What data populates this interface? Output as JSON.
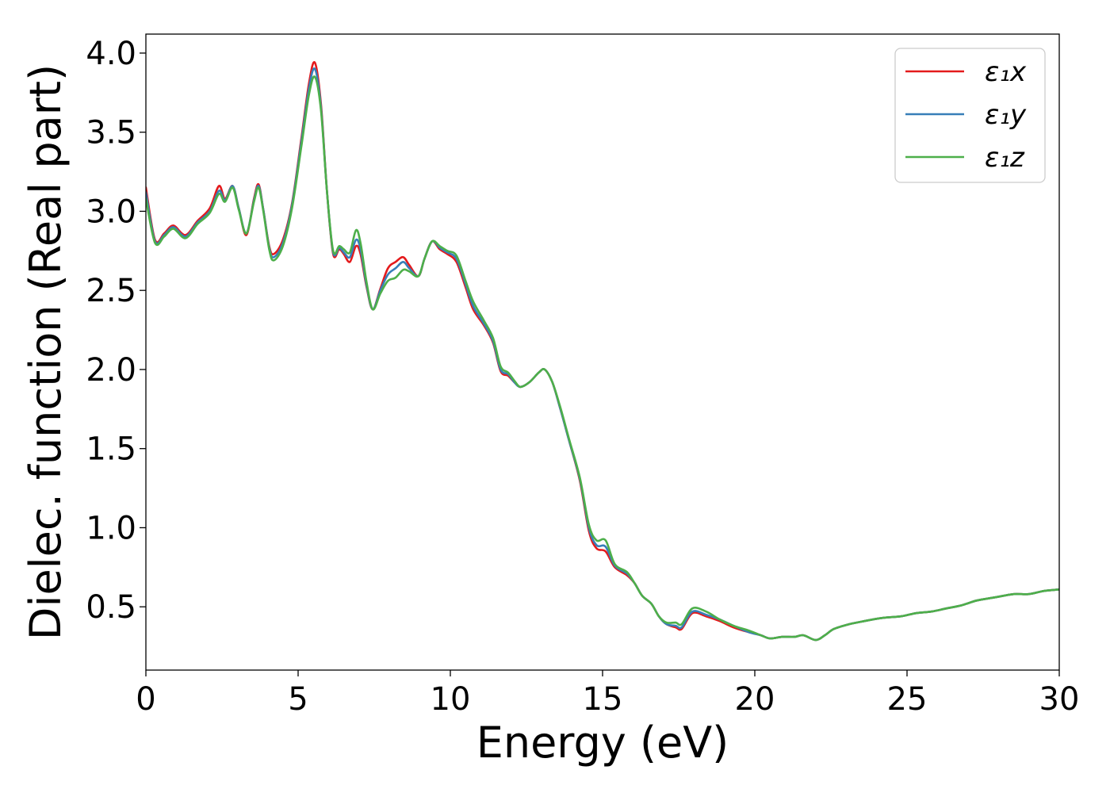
{
  "chart_data": {
    "type": "line",
    "xlabel": "Energy (eV)",
    "ylabel": "Dielec. function (Real part)",
    "xlim": [
      0,
      30
    ],
    "ylim": [
      0.1,
      4.12
    ],
    "xticks": [
      0,
      5,
      10,
      15,
      20,
      25,
      30
    ],
    "yticks": [
      0.5,
      1.0,
      1.5,
      2.0,
      2.5,
      3.0,
      3.5,
      4.0
    ],
    "xtick_labels": [
      "0",
      "5",
      "10",
      "15",
      "20",
      "25",
      "30"
    ],
    "ytick_labels": [
      "0.5",
      "1.0",
      "1.5",
      "2.0",
      "2.5",
      "3.0",
      "3.5",
      "4.0"
    ],
    "grid": false,
    "legend_position": "top-right",
    "series": [
      {
        "name": "ε₁x",
        "color": "#e41a1c",
        "points": [
          [
            0,
            3.15
          ],
          [
            0.3,
            2.82
          ],
          [
            0.6,
            2.86
          ],
          [
            0.9,
            2.91
          ],
          [
            1.3,
            2.85
          ],
          [
            1.7,
            2.94
          ],
          [
            2.1,
            3.02
          ],
          [
            2.4,
            3.16
          ],
          [
            2.6,
            3.08
          ],
          [
            2.85,
            3.16
          ],
          [
            3.05,
            3.02
          ],
          [
            3.3,
            2.85
          ],
          [
            3.55,
            3.08
          ],
          [
            3.7,
            3.17
          ],
          [
            3.85,
            3.02
          ],
          [
            4.05,
            2.78
          ],
          [
            4.2,
            2.73
          ],
          [
            4.5,
            2.82
          ],
          [
            4.8,
            3.05
          ],
          [
            5.1,
            3.45
          ],
          [
            5.35,
            3.8
          ],
          [
            5.55,
            3.94
          ],
          [
            5.75,
            3.68
          ],
          [
            5.95,
            3.12
          ],
          [
            6.15,
            2.73
          ],
          [
            6.35,
            2.76
          ],
          [
            6.5,
            2.73
          ],
          [
            6.7,
            2.68
          ],
          [
            6.9,
            2.78
          ],
          [
            7.05,
            2.73
          ],
          [
            7.25,
            2.52
          ],
          [
            7.45,
            2.38
          ],
          [
            7.7,
            2.51
          ],
          [
            7.95,
            2.64
          ],
          [
            8.2,
            2.68
          ],
          [
            8.45,
            2.71
          ],
          [
            8.65,
            2.66
          ],
          [
            8.95,
            2.59
          ],
          [
            9.15,
            2.7
          ],
          [
            9.4,
            2.81
          ],
          [
            9.65,
            2.76
          ],
          [
            9.9,
            2.73
          ],
          [
            10.2,
            2.68
          ],
          [
            10.5,
            2.52
          ],
          [
            10.75,
            2.38
          ],
          [
            11.1,
            2.28
          ],
          [
            11.4,
            2.17
          ],
          [
            11.65,
            1.99
          ],
          [
            11.9,
            1.96
          ],
          [
            12.1,
            1.92
          ],
          [
            12.3,
            1.89
          ],
          [
            12.6,
            1.92
          ],
          [
            12.9,
            1.98
          ],
          [
            13.1,
            2.0
          ],
          [
            13.35,
            1.92
          ],
          [
            13.6,
            1.76
          ],
          [
            13.9,
            1.55
          ],
          [
            14.25,
            1.3
          ],
          [
            14.55,
            0.98
          ],
          [
            14.8,
            0.87
          ],
          [
            15.1,
            0.85
          ],
          [
            15.4,
            0.75
          ],
          [
            15.8,
            0.7
          ],
          [
            16.05,
            0.65
          ],
          [
            16.3,
            0.57
          ],
          [
            16.6,
            0.52
          ],
          [
            16.85,
            0.44
          ],
          [
            17.1,
            0.39
          ],
          [
            17.4,
            0.37
          ],
          [
            17.6,
            0.36
          ],
          [
            17.95,
            0.46
          ],
          [
            18.4,
            0.44
          ],
          [
            18.85,
            0.41
          ],
          [
            19.3,
            0.37
          ],
          [
            19.8,
            0.34
          ],
          [
            20.2,
            0.32
          ],
          [
            20.5,
            0.3
          ],
          [
            20.9,
            0.31
          ],
          [
            21.3,
            0.31
          ],
          [
            21.6,
            0.32
          ],
          [
            22.0,
            0.29
          ],
          [
            22.3,
            0.32
          ],
          [
            22.6,
            0.36
          ],
          [
            23.1,
            0.39
          ],
          [
            23.6,
            0.41
          ],
          [
            24.2,
            0.43
          ],
          [
            24.8,
            0.44
          ],
          [
            25.3,
            0.46
          ],
          [
            25.8,
            0.47
          ],
          [
            26.3,
            0.49
          ],
          [
            26.8,
            0.51
          ],
          [
            27.3,
            0.54
          ],
          [
            27.9,
            0.56
          ],
          [
            28.5,
            0.58
          ],
          [
            29.0,
            0.58
          ],
          [
            29.5,
            0.6
          ],
          [
            30.0,
            0.61
          ]
        ]
      },
      {
        "name": "ε₁y",
        "color": "#377eb8",
        "points": [
          [
            0,
            3.12
          ],
          [
            0.3,
            2.81
          ],
          [
            0.6,
            2.85
          ],
          [
            0.9,
            2.9
          ],
          [
            1.3,
            2.84
          ],
          [
            1.7,
            2.93
          ],
          [
            2.1,
            3.0
          ],
          [
            2.4,
            3.13
          ],
          [
            2.6,
            3.07
          ],
          [
            2.85,
            3.16
          ],
          [
            3.05,
            3.02
          ],
          [
            3.3,
            2.86
          ],
          [
            3.55,
            3.07
          ],
          [
            3.7,
            3.16
          ],
          [
            3.85,
            3.02
          ],
          [
            4.05,
            2.77
          ],
          [
            4.2,
            2.71
          ],
          [
            4.5,
            2.8
          ],
          [
            4.8,
            3.04
          ],
          [
            5.1,
            3.43
          ],
          [
            5.35,
            3.77
          ],
          [
            5.55,
            3.9
          ],
          [
            5.75,
            3.66
          ],
          [
            5.95,
            3.12
          ],
          [
            6.15,
            2.74
          ],
          [
            6.35,
            2.77
          ],
          [
            6.5,
            2.74
          ],
          [
            6.7,
            2.71
          ],
          [
            6.9,
            2.82
          ],
          [
            7.05,
            2.76
          ],
          [
            7.25,
            2.53
          ],
          [
            7.45,
            2.38
          ],
          [
            7.7,
            2.5
          ],
          [
            7.95,
            2.6
          ],
          [
            8.2,
            2.64
          ],
          [
            8.45,
            2.68
          ],
          [
            8.65,
            2.64
          ],
          [
            8.95,
            2.59
          ],
          [
            9.15,
            2.7
          ],
          [
            9.4,
            2.81
          ],
          [
            9.65,
            2.77
          ],
          [
            9.9,
            2.74
          ],
          [
            10.2,
            2.7
          ],
          [
            10.5,
            2.54
          ],
          [
            10.75,
            2.4
          ],
          [
            11.1,
            2.29
          ],
          [
            11.4,
            2.18
          ],
          [
            11.65,
            2.0
          ],
          [
            11.9,
            1.97
          ],
          [
            12.1,
            1.92
          ],
          [
            12.3,
            1.89
          ],
          [
            12.6,
            1.92
          ],
          [
            12.9,
            1.98
          ],
          [
            13.1,
            2.0
          ],
          [
            13.35,
            1.92
          ],
          [
            13.6,
            1.76
          ],
          [
            13.9,
            1.55
          ],
          [
            14.25,
            1.31
          ],
          [
            14.55,
            1.0
          ],
          [
            14.8,
            0.89
          ],
          [
            15.1,
            0.88
          ],
          [
            15.4,
            0.76
          ],
          [
            15.8,
            0.71
          ],
          [
            16.05,
            0.65
          ],
          [
            16.3,
            0.57
          ],
          [
            16.6,
            0.52
          ],
          [
            16.85,
            0.44
          ],
          [
            17.1,
            0.39
          ],
          [
            17.4,
            0.38
          ],
          [
            17.6,
            0.37
          ],
          [
            17.95,
            0.47
          ],
          [
            18.4,
            0.45
          ],
          [
            18.85,
            0.42
          ],
          [
            19.3,
            0.38
          ],
          [
            19.8,
            0.34
          ],
          [
            20.2,
            0.32
          ],
          [
            20.5,
            0.3
          ],
          [
            20.9,
            0.31
          ],
          [
            21.3,
            0.31
          ],
          [
            21.6,
            0.32
          ],
          [
            22.0,
            0.29
          ],
          [
            22.3,
            0.32
          ],
          [
            22.6,
            0.36
          ],
          [
            23.1,
            0.39
          ],
          [
            23.6,
            0.41
          ],
          [
            24.2,
            0.43
          ],
          [
            24.8,
            0.44
          ],
          [
            25.3,
            0.46
          ],
          [
            25.8,
            0.47
          ],
          [
            26.3,
            0.49
          ],
          [
            26.8,
            0.51
          ],
          [
            27.3,
            0.54
          ],
          [
            27.9,
            0.56
          ],
          [
            28.5,
            0.58
          ],
          [
            29.0,
            0.58
          ],
          [
            29.5,
            0.6
          ],
          [
            30.0,
            0.61
          ]
        ]
      },
      {
        "name": "ε₁z",
        "color": "#4daf4a",
        "points": [
          [
            0,
            3.08
          ],
          [
            0.3,
            2.8
          ],
          [
            0.6,
            2.84
          ],
          [
            0.9,
            2.89
          ],
          [
            1.3,
            2.83
          ],
          [
            1.7,
            2.92
          ],
          [
            2.1,
            2.99
          ],
          [
            2.4,
            3.11
          ],
          [
            2.6,
            3.06
          ],
          [
            2.85,
            3.15
          ],
          [
            3.05,
            3.01
          ],
          [
            3.3,
            2.86
          ],
          [
            3.55,
            3.06
          ],
          [
            3.7,
            3.15
          ],
          [
            3.85,
            3.01
          ],
          [
            4.05,
            2.76
          ],
          [
            4.2,
            2.69
          ],
          [
            4.5,
            2.78
          ],
          [
            4.8,
            3.02
          ],
          [
            5.1,
            3.4
          ],
          [
            5.35,
            3.73
          ],
          [
            5.55,
            3.85
          ],
          [
            5.75,
            3.64
          ],
          [
            5.95,
            3.12
          ],
          [
            6.15,
            2.75
          ],
          [
            6.35,
            2.78
          ],
          [
            6.5,
            2.76
          ],
          [
            6.7,
            2.74
          ],
          [
            6.9,
            2.88
          ],
          [
            7.05,
            2.8
          ],
          [
            7.25,
            2.55
          ],
          [
            7.45,
            2.38
          ],
          [
            7.7,
            2.48
          ],
          [
            7.95,
            2.56
          ],
          [
            8.2,
            2.58
          ],
          [
            8.45,
            2.63
          ],
          [
            8.65,
            2.62
          ],
          [
            8.95,
            2.59
          ],
          [
            9.15,
            2.7
          ],
          [
            9.4,
            2.81
          ],
          [
            9.65,
            2.78
          ],
          [
            9.9,
            2.75
          ],
          [
            10.2,
            2.72
          ],
          [
            10.5,
            2.56
          ],
          [
            10.75,
            2.43
          ],
          [
            11.1,
            2.31
          ],
          [
            11.4,
            2.2
          ],
          [
            11.65,
            2.02
          ],
          [
            11.9,
            1.98
          ],
          [
            12.1,
            1.93
          ],
          [
            12.3,
            1.89
          ],
          [
            12.6,
            1.92
          ],
          [
            12.9,
            1.98
          ],
          [
            13.1,
            2.0
          ],
          [
            13.35,
            1.92
          ],
          [
            13.6,
            1.77
          ],
          [
            13.9,
            1.56
          ],
          [
            14.25,
            1.32
          ],
          [
            14.55,
            1.02
          ],
          [
            14.8,
            0.92
          ],
          [
            15.1,
            0.92
          ],
          [
            15.4,
            0.77
          ],
          [
            15.8,
            0.72
          ],
          [
            16.05,
            0.65
          ],
          [
            16.3,
            0.57
          ],
          [
            16.6,
            0.52
          ],
          [
            16.85,
            0.44
          ],
          [
            17.1,
            0.4
          ],
          [
            17.4,
            0.4
          ],
          [
            17.6,
            0.39
          ],
          [
            17.95,
            0.49
          ],
          [
            18.4,
            0.47
          ],
          [
            18.85,
            0.42
          ],
          [
            19.3,
            0.38
          ],
          [
            19.8,
            0.35
          ],
          [
            20.2,
            0.32
          ],
          [
            20.5,
            0.3
          ],
          [
            20.9,
            0.31
          ],
          [
            21.3,
            0.31
          ],
          [
            21.6,
            0.32
          ],
          [
            22.0,
            0.29
          ],
          [
            22.3,
            0.32
          ],
          [
            22.6,
            0.36
          ],
          [
            23.1,
            0.39
          ],
          [
            23.6,
            0.41
          ],
          [
            24.2,
            0.43
          ],
          [
            24.8,
            0.44
          ],
          [
            25.3,
            0.46
          ],
          [
            25.8,
            0.47
          ],
          [
            26.3,
            0.49
          ],
          [
            26.8,
            0.51
          ],
          [
            27.3,
            0.54
          ],
          [
            27.9,
            0.56
          ],
          [
            28.5,
            0.58
          ],
          [
            29.0,
            0.58
          ],
          [
            29.5,
            0.6
          ],
          [
            30.0,
            0.61
          ]
        ]
      }
    ]
  }
}
